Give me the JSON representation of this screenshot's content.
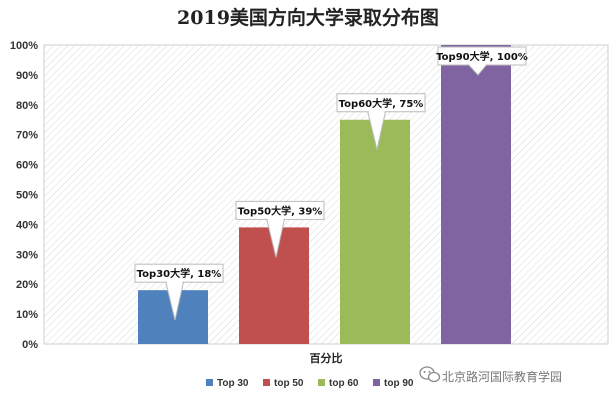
{
  "chart_data": {
    "type": "bar",
    "title": "2019美国方向大学录取分布图",
    "xlabel": "百分比",
    "ylabel": "",
    "ylim": [
      0,
      100
    ],
    "yticks": [
      "0%",
      "10%",
      "20%",
      "30%",
      "40%",
      "50%",
      "60%",
      "70%",
      "80%",
      "90%",
      "100%"
    ],
    "grid": false,
    "legend_position": "bottom",
    "series": [
      {
        "name": "Top 30",
        "value": 18,
        "color": "#4f81bd",
        "label": "Top30大学, 18%"
      },
      {
        "name": "top 50",
        "value": 39,
        "color": "#c0504d",
        "label": "Top50大学, 39%"
      },
      {
        "name": "top 60",
        "value": 75,
        "color": "#9bbb59",
        "label": "Top60大学, 75%"
      },
      {
        "name": "top 90",
        "value": 100,
        "color": "#8064a2",
        "label": "Top90大学, 100%"
      }
    ]
  },
  "watermark": {
    "text": "北京路河国际教育学园",
    "icon": "wechat-icon"
  }
}
